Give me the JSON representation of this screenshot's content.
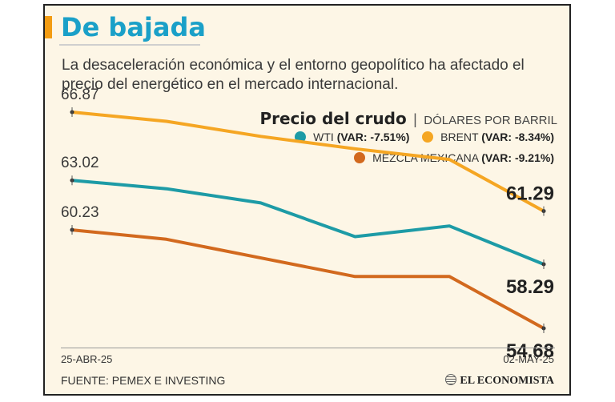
{
  "title": "De bajada",
  "subtitle": "La desaceleración económica y el entorno geopolítico ha afectado el precio del energético en el mercado internacional.",
  "colors": {
    "accent": "#f39c12",
    "title": "#1aa0c8",
    "wti": "#1d9ba6",
    "brent": "#f5a623",
    "mezcla": "#d2691e"
  },
  "legend": {
    "title": "Precio del crudo",
    "separator": "|",
    "unit": "DÓLARES POR BARRIL",
    "items": [
      {
        "name": "WTI",
        "var": "(VAR: -7.51%)"
      },
      {
        "name": "BRENT",
        "var": "(VAR: -8.34%)"
      },
      {
        "name": "MEZCLA MEXICANA",
        "var": "(VAR: -9.21%)"
      }
    ]
  },
  "chart_data": {
    "type": "line",
    "x": [
      "25-ABR-25",
      "",
      "",
      "",
      "",
      "02-MAY-25"
    ],
    "series": [
      {
        "name": "WTI",
        "values": [
          63.02,
          62.55,
          61.75,
          59.85,
          60.45,
          58.29
        ]
      },
      {
        "name": "BRENT",
        "values": [
          66.87,
          66.35,
          65.5,
          64.8,
          64.2,
          61.29
        ]
      },
      {
        "name": "MEZCLA MEXICANA",
        "values": [
          60.23,
          59.7,
          58.65,
          57.6,
          57.6,
          54.68
        ]
      }
    ],
    "start_labels": [
      "66.87",
      "63.02",
      "60.23"
    ],
    "end_labels": [
      "61.29",
      "58.29",
      "54.68"
    ],
    "ylim": [
      54.5,
      67.5
    ]
  },
  "axis": {
    "start": "25-ABR-25",
    "end": "02-MAY-25"
  },
  "footer": {
    "source": "FUENTE: PEMEX E INVESTING",
    "brand": "EL ECONOMISTA"
  }
}
